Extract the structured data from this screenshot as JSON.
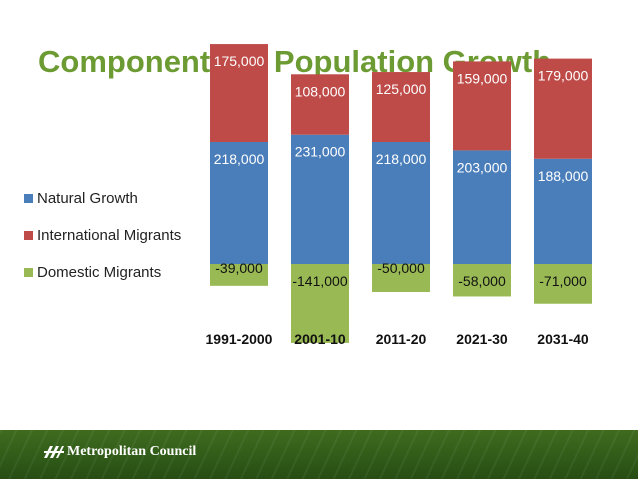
{
  "slide": {
    "title": "Components of Population Growth"
  },
  "footer": {
    "org_name": "Metropolitan Council"
  },
  "colors": {
    "title": "#6d9b33",
    "natural": "#4a7ebb",
    "international": "#be4b48",
    "domestic": "#98b954",
    "footer_bg": "#2f5a18"
  },
  "legend": [
    {
      "label": "Natural Growth",
      "color": "#4a7ebb"
    },
    {
      "label": "International Migrants",
      "color": "#be4b48"
    },
    {
      "label": "Domestic Migrants",
      "color": "#98b954"
    }
  ],
  "chart_data": {
    "type": "bar",
    "stacked": true,
    "categories": [
      "1991-2000",
      "2001-10",
      "2011-20",
      "2021-30",
      "2031-40"
    ],
    "series": [
      {
        "name": "Natural Growth",
        "color": "#4a7ebb",
        "values": [
          218000,
          231000,
          218000,
          203000,
          188000
        ],
        "labels": [
          "218,000",
          "231,000",
          "218,000",
          "203,000",
          "188,000"
        ]
      },
      {
        "name": "International Migrants",
        "color": "#be4b48",
        "values": [
          175000,
          108000,
          125000,
          159000,
          179000
        ],
        "labels": [
          "175,000",
          "108,000",
          "125,000",
          "159,000",
          "179,000"
        ]
      },
      {
        "name": "Domestic Migrants",
        "color": "#98b954",
        "values": [
          -39000,
          -141000,
          -50000,
          -58000,
          -71000
        ],
        "labels": [
          "-39,000",
          "-141,000",
          "-50,000",
          "-58,000",
          "-71,000"
        ]
      }
    ],
    "ylim": [
      -141000,
      410000
    ],
    "grid": false,
    "legend_position": "left"
  }
}
